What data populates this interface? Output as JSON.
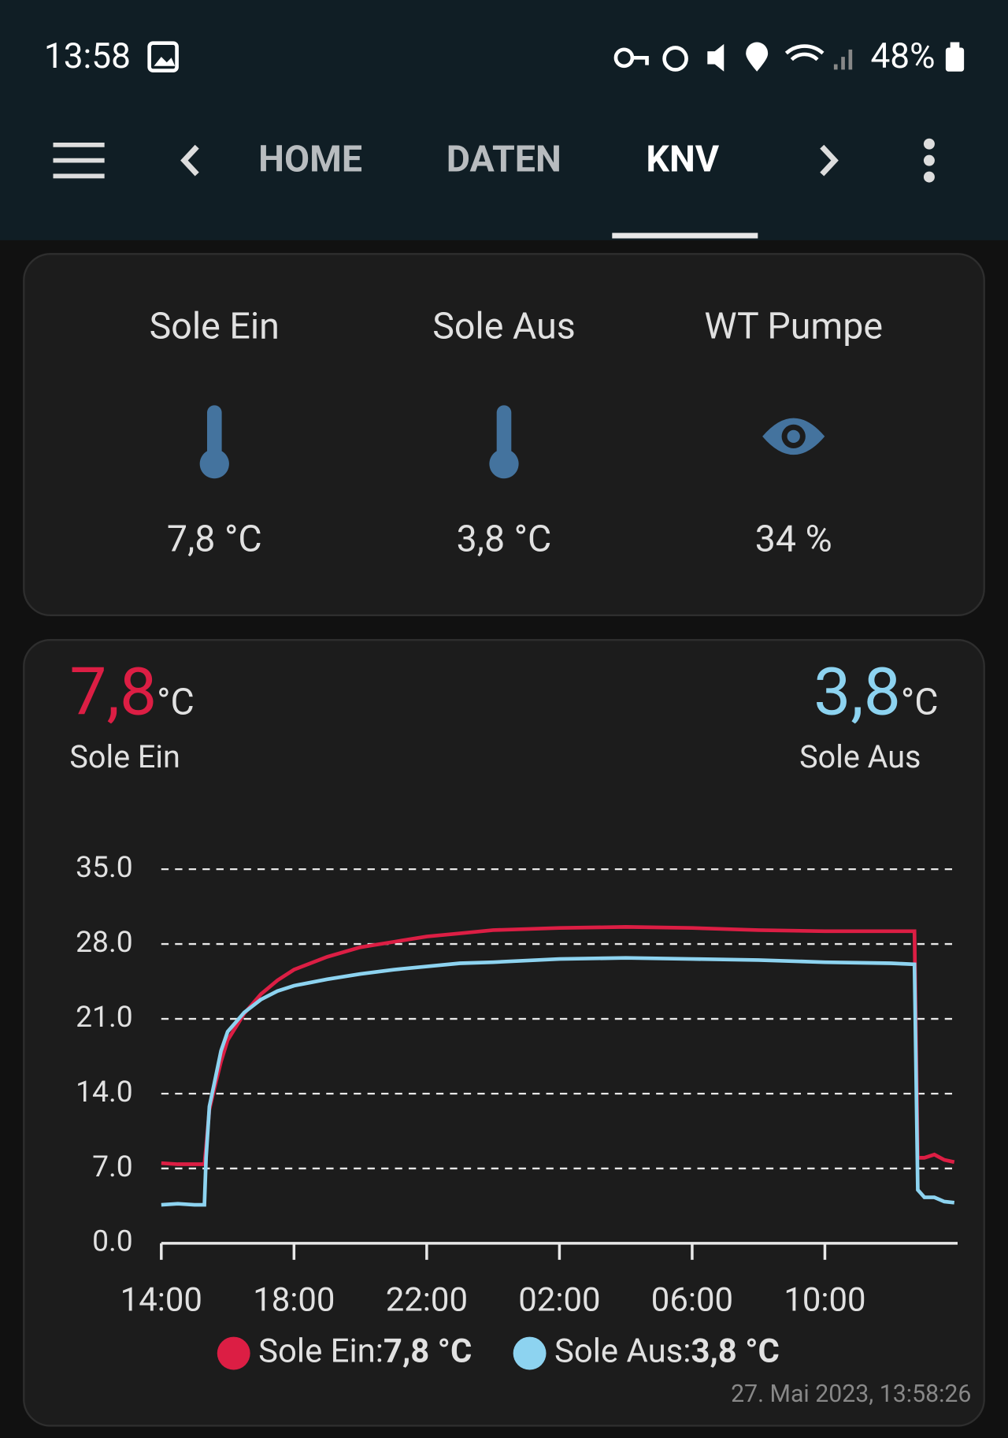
{
  "status_bar": {
    "time": "13:58",
    "battery": "48%"
  },
  "tabs": [
    "HOME",
    "DATEN",
    "KNV"
  ],
  "entities": [
    {
      "name": "Sole Ein",
      "state": "7,8 °C"
    },
    {
      "name": "Sole Aus",
      "state": "3,8 °C"
    },
    {
      "name": "WT Pumpe",
      "state": "34 %"
    }
  ],
  "chart_card": {
    "header": [
      {
        "value": "7,8",
        "unit": "°C"
      },
      {
        "value": "3,8",
        "unit": "°C"
      }
    ],
    "timestamp": "27. Mai 2023, 13:58:26"
  },
  "chart_data": {
    "type": "line",
    "grid": true,
    "x": [
      0,
      0.5,
      1,
      1.3,
      1.35,
      1.45,
      1.6,
      1.8,
      2,
      2.5,
      3,
      3.5,
      4,
      5,
      6,
      7,
      8,
      9,
      10,
      12,
      14,
      16,
      18,
      20,
      22,
      22.7,
      22.8,
      23,
      23.3,
      23.6,
      23.9
    ],
    "xlim": [
      0,
      24
    ],
    "xticks": [
      {
        "value": 0,
        "label": "14:00"
      },
      {
        "value": 4,
        "label": "18:00"
      },
      {
        "value": 8,
        "label": "22:00"
      },
      {
        "value": 12,
        "label": "02:00"
      },
      {
        "value": 16,
        "label": "06:00"
      },
      {
        "value": 20,
        "label": "10:00"
      }
    ],
    "ylim": [
      0,
      35
    ],
    "yticks": [
      {
        "value": 0,
        "label": "0.0"
      },
      {
        "value": 7,
        "label": "7.0"
      },
      {
        "value": 14,
        "label": "14.0"
      },
      {
        "value": 21,
        "label": "21.0"
      },
      {
        "value": 28,
        "label": "28.0"
      },
      {
        "value": 35,
        "label": "35.0"
      }
    ],
    "series": [
      {
        "name": "Sole Ein",
        "color": "#dc1e44",
        "values": [
          7.5,
          7.4,
          7.4,
          7.4,
          9,
          12.5,
          14.5,
          17,
          19,
          21.5,
          23.3,
          24.6,
          25.6,
          26.8,
          27.7,
          28.2,
          28.7,
          29,
          29.3,
          29.5,
          29.6,
          29.5,
          29.3,
          29.2,
          29.2,
          29.2,
          8,
          8,
          8.3,
          7.8,
          7.6
        ]
      },
      {
        "name": "Sole Aus",
        "color": "#8dd3f0",
        "values": [
          3.6,
          3.7,
          3.6,
          3.6,
          8,
          12.8,
          15,
          18,
          19.8,
          21.6,
          22.8,
          23.6,
          24.1,
          24.7,
          25.2,
          25.6,
          25.9,
          26.2,
          26.3,
          26.6,
          26.7,
          26.6,
          26.5,
          26.3,
          26.2,
          26.1,
          5,
          4.3,
          4.3,
          3.9,
          3.8
        ]
      }
    ],
    "legend": [
      {
        "label": "Sole Ein:",
        "value": "7,8 °C"
      },
      {
        "label": "Sole Aus:",
        "value": "3,8 °C"
      }
    ]
  }
}
